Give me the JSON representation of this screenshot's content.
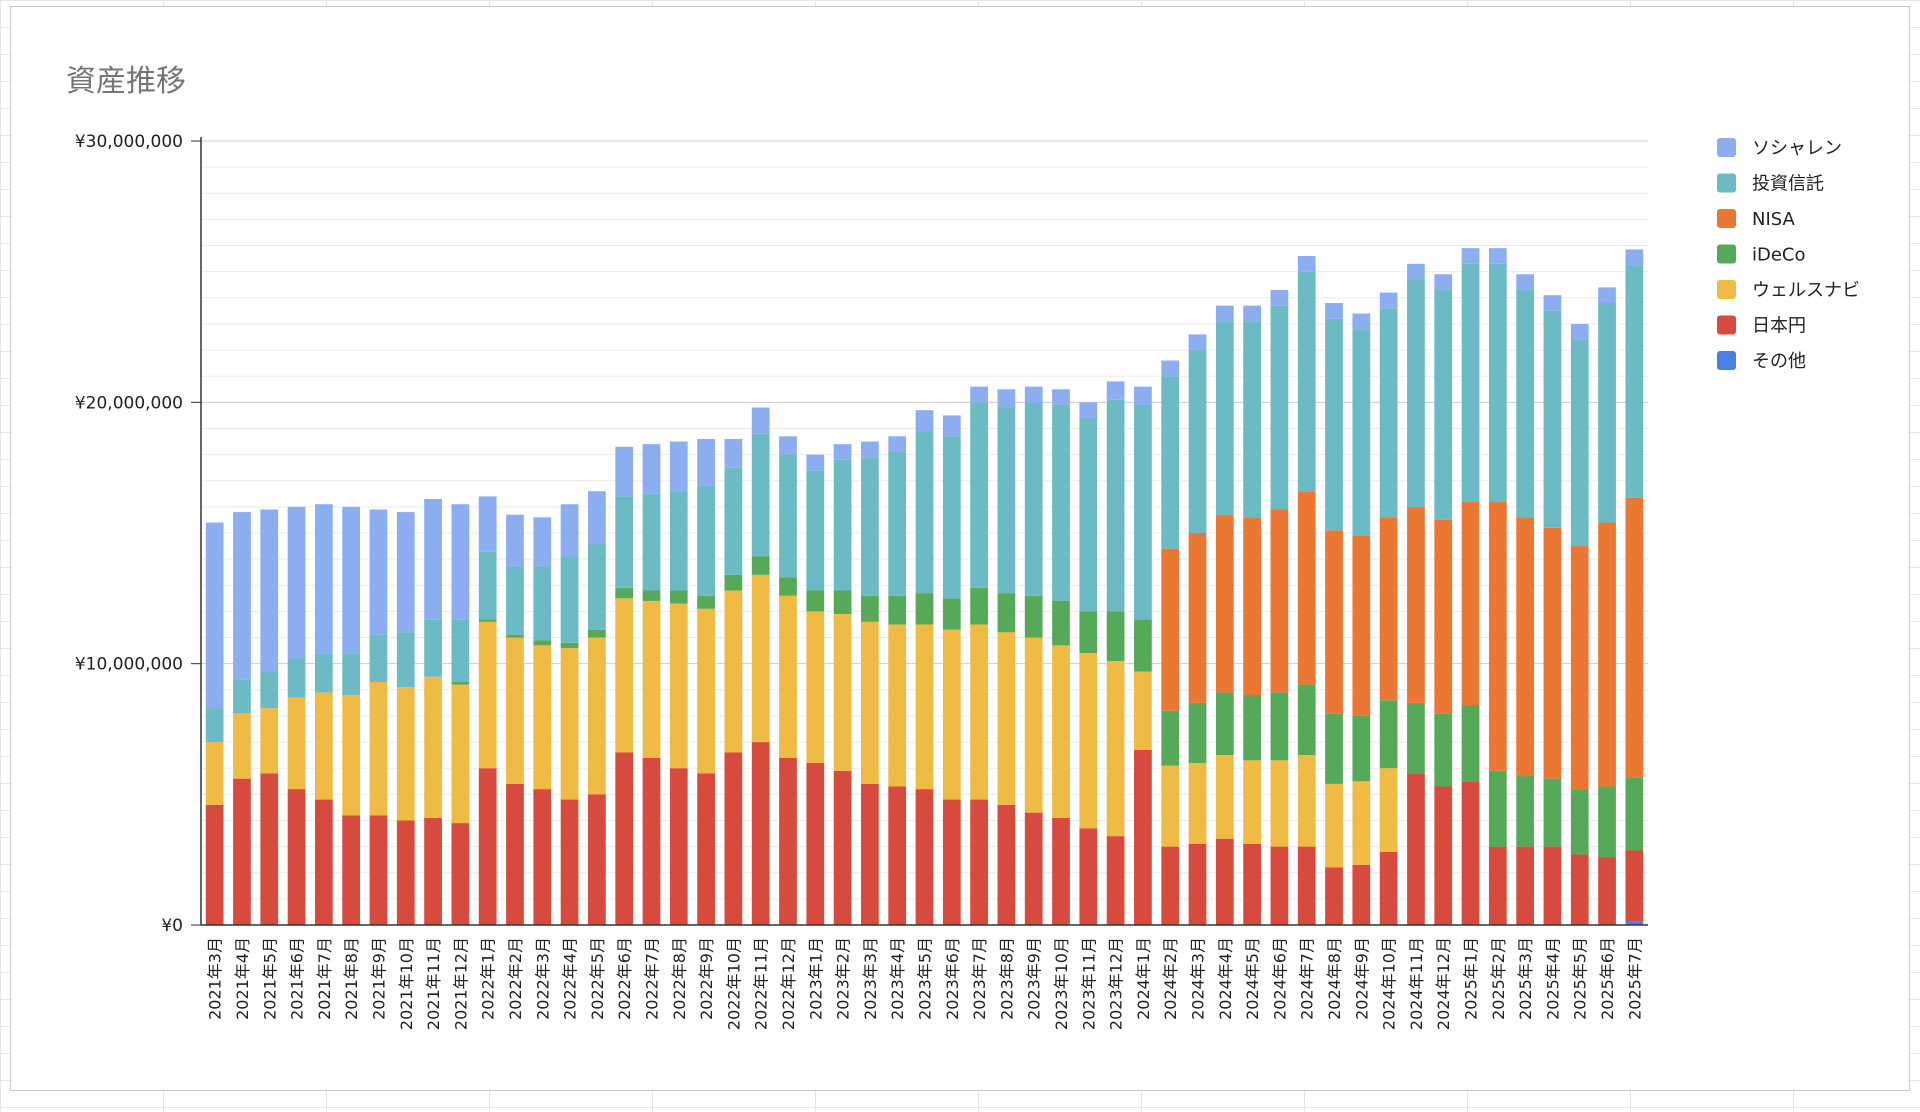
{
  "chart_data": {
    "type": "bar",
    "stacked": true,
    "title": "資産推移",
    "xlabel": "",
    "ylabel": "",
    "ylim": [
      0,
      30000000
    ],
    "y_ticks": [
      "¥0",
      "¥10,000,000",
      "¥20,000,000",
      "¥30,000,000"
    ],
    "y_tick_values": [
      0,
      10000000,
      20000000,
      30000000
    ],
    "grid": true,
    "legend_position": "right",
    "categories": [
      "2021年3月",
      "2021年4月",
      "2021年5月",
      "2021年6月",
      "2021年7月",
      "2021年8月",
      "2021年9月",
      "2021年10月",
      "2021年11月",
      "2021年12月",
      "2022年1月",
      "2022年2月",
      "2022年3月",
      "2022年4月",
      "2022年5月",
      "2022年6月",
      "2022年7月",
      "2022年8月",
      "2022年9月",
      "2022年10月",
      "2022年11月",
      "2022年12月",
      "2023年1月",
      "2023年2月",
      "2023年3月",
      "2023年4月",
      "2023年5月",
      "2023年6月",
      "2023年7月",
      "2023年8月",
      "2023年9月",
      "2023年10月",
      "2023年11月",
      "2023年12月",
      "2024年1月",
      "2024年2月",
      "2024年3月",
      "2024年4月",
      "2024年5月",
      "2024年6月",
      "2024年7月",
      "2024年8月",
      "2024年9月",
      "2024年10月",
      "2024年11月",
      "2024年12月",
      "2025年1月",
      "2025年2月",
      "2025年3月",
      "2025年4月",
      "2025年5月",
      "2025年6月",
      "2025年7月"
    ],
    "series": [
      {
        "name": "その他",
        "color": "#4a7fe3",
        "values": [
          0,
          0,
          0,
          0,
          0,
          0,
          0,
          0,
          0,
          0,
          0,
          0,
          0,
          0,
          0,
          0,
          0,
          0,
          0,
          0,
          0,
          0,
          0,
          0,
          0,
          0,
          0,
          0,
          0,
          0,
          0,
          0,
          0,
          0,
          0,
          0,
          0,
          0,
          0,
          0,
          0,
          0,
          0,
          0,
          0,
          0,
          0,
          0,
          0,
          0,
          0,
          0,
          150000
        ]
      },
      {
        "name": "日本円",
        "color": "#d74b3f",
        "values": [
          4600000,
          5600000,
          5800000,
          5200000,
          4800000,
          4200000,
          4200000,
          4000000,
          4100000,
          3900000,
          6000000,
          5400000,
          5200000,
          4800000,
          5000000,
          6600000,
          6400000,
          6000000,
          5800000,
          6600000,
          7000000,
          6400000,
          6200000,
          5900000,
          5400000,
          5300000,
          5200000,
          4800000,
          4800000,
          4600000,
          4300000,
          4100000,
          3700000,
          3400000,
          6700000,
          3000000,
          3100000,
          3300000,
          3100000,
          3000000,
          3000000,
          2200000,
          2300000,
          2800000,
          5800000,
          5300000,
          5500000,
          3000000,
          3000000,
          3000000,
          2700000,
          2600000,
          2700000
        ]
      },
      {
        "name": "ウェルスナビ",
        "color": "#f0bb44",
        "values": [
          2400000,
          2500000,
          2500000,
          3500000,
          4100000,
          4600000,
          5100000,
          5100000,
          5400000,
          5300000,
          5600000,
          5600000,
          5500000,
          5800000,
          6000000,
          5900000,
          6000000,
          6300000,
          6300000,
          6200000,
          6400000,
          6200000,
          5800000,
          6000000,
          6200000,
          6200000,
          6300000,
          6500000,
          6700000,
          6600000,
          6700000,
          6600000,
          6700000,
          6700000,
          3000000,
          3100000,
          3100000,
          3200000,
          3200000,
          3300000,
          3500000,
          3200000,
          3200000,
          3200000,
          0,
          0,
          0,
          0,
          0,
          0,
          0,
          0,
          0
        ]
      },
      {
        "name": "iDeCo",
        "color": "#57a95a",
        "values": [
          0,
          0,
          0,
          0,
          0,
          0,
          0,
          0,
          0,
          100000,
          100000,
          100000,
          200000,
          200000,
          300000,
          400000,
          400000,
          500000,
          500000,
          600000,
          700000,
          700000,
          800000,
          900000,
          1000000,
          1100000,
          1200000,
          1200000,
          1400000,
          1500000,
          1600000,
          1700000,
          1600000,
          1900000,
          2000000,
          2100000,
          2300000,
          2400000,
          2500000,
          2600000,
          2700000,
          2700000,
          2500000,
          2600000,
          2700000,
          2800000,
          2900000,
          2900000,
          2700000,
          2600000,
          2500000,
          2700000,
          2800000
        ]
      },
      {
        "name": "NISA",
        "color": "#ea7834",
        "values": [
          0,
          0,
          0,
          0,
          0,
          0,
          0,
          0,
          0,
          0,
          0,
          0,
          0,
          0,
          0,
          0,
          0,
          0,
          0,
          0,
          0,
          0,
          0,
          0,
          0,
          0,
          0,
          0,
          0,
          0,
          0,
          0,
          0,
          0,
          0,
          6200000,
          6500000,
          6800000,
          6800000,
          7000000,
          7400000,
          7000000,
          6900000,
          7000000,
          7500000,
          7400000,
          7800000,
          10300000,
          9900000,
          9600000,
          9300000,
          10100000,
          10700000
        ]
      },
      {
        "name": "投資信託",
        "color": "#6bbac4",
        "values": [
          1300000,
          1300000,
          1400000,
          1500000,
          1500000,
          1600000,
          1800000,
          2100000,
          2200000,
          2400000,
          2600000,
          2600000,
          2800000,
          3300000,
          3300000,
          3500000,
          3700000,
          3800000,
          4200000,
          4100000,
          4700000,
          4700000,
          4600000,
          5000000,
          5300000,
          5500000,
          6200000,
          6200000,
          7100000,
          7100000,
          7400000,
          7500000,
          7400000,
          8100000,
          8200000,
          6600000,
          7000000,
          7400000,
          7500000,
          7800000,
          8400000,
          8100000,
          7900000,
          8000000,
          8700000,
          8800000,
          9100000,
          9100000,
          8700000,
          8300000,
          7900000,
          8400000,
          8900000
        ]
      },
      {
        "name": "ソシャレン",
        "color": "#8caef0",
        "values": [
          7100000,
          6400000,
          6200000,
          5800000,
          5700000,
          5600000,
          4800000,
          4600000,
          4600000,
          4400000,
          2100000,
          2000000,
          1900000,
          2000000,
          2000000,
          1900000,
          1900000,
          1900000,
          1800000,
          1100000,
          1000000,
          700000,
          600000,
          600000,
          600000,
          600000,
          800000,
          800000,
          600000,
          700000,
          600000,
          600000,
          600000,
          700000,
          700000,
          600000,
          600000,
          600000,
          600000,
          600000,
          600000,
          600000,
          600000,
          600000,
          600000,
          600000,
          600000,
          600000,
          600000,
          600000,
          600000,
          600000,
          600000
        ]
      }
    ],
    "legend_order": [
      "ソシャレン",
      "投資信託",
      "NISA",
      "iDeCo",
      "ウェルスナビ",
      "日本円",
      "その他"
    ]
  }
}
